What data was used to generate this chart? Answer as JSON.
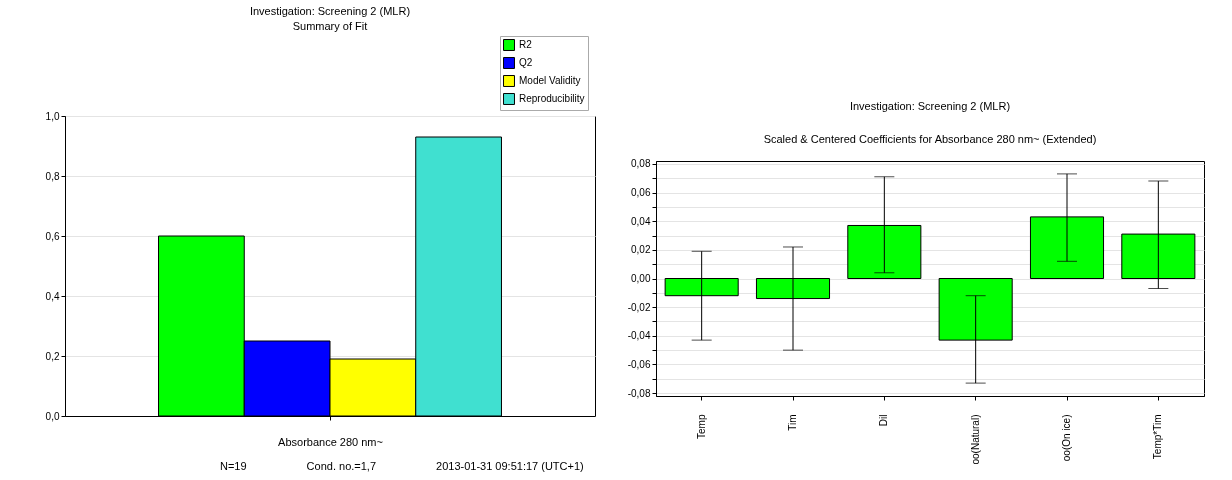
{
  "chart_data": [
    {
      "type": "bar",
      "title": "Investigation: Screening 2 (MLR)",
      "subtitle": "Summary of Fit",
      "xlabel": "Absorbance 280 nm~",
      "categories": [
        null
      ],
      "series": [
        {
          "name": "R2",
          "color": "#00ff00",
          "values": [
            0.6
          ]
        },
        {
          "name": "Q2",
          "color": "#0000ff",
          "values": [
            0.25
          ]
        },
        {
          "name": "Model Validity",
          "color": "#ffff00",
          "values": [
            0.19
          ]
        },
        {
          "name": "Reproducibility",
          "color": "#40e0d0",
          "values": [
            0.93
          ]
        }
      ],
      "ylim": [
        0,
        1
      ],
      "yticks": [
        {
          "value": 0,
          "label": "0,0"
        },
        {
          "value": 0.2,
          "label": "0,2"
        },
        {
          "value": 0.4,
          "label": "0,4"
        },
        {
          "value": 0.6,
          "label": "0,6"
        },
        {
          "value": 0.8,
          "label": "0,8"
        },
        {
          "value": 1,
          "label": "1,0"
        }
      ],
      "grid": "y",
      "legend": "top right",
      "annotations": [
        "N=19",
        "Cond. no.=1,7",
        "2013-01-31 09:51:17 (UTC+1)"
      ]
    },
    {
      "type": "bar",
      "title": "Investigation: Screening 2 (MLR)",
      "subtitle": "Scaled & Centered Coefficients for Absorbance 280 nm~ (Extended)",
      "categories": [
        "Temp",
        "Tim",
        "Dil",
        "oo(Natural)",
        "oo(On ice)",
        "Temp*Tim"
      ],
      "values": [
        -0.012,
        -0.014,
        0.037,
        -0.043,
        0.043,
        0.031
      ],
      "color": "#00ff00",
      "errors": [
        [
          -0.043,
          0.019
        ],
        [
          -0.05,
          0.022
        ],
        [
          0.004,
          0.071
        ],
        [
          -0.073,
          -0.012
        ],
        [
          0.012,
          0.073
        ],
        [
          -0.007,
          0.068
        ]
      ],
      "ylim": [
        -0.082,
        0.082
      ],
      "yticks": [
        {
          "value": -0.08,
          "label": "-0,08"
        },
        {
          "value": -0.07,
          "label": null
        },
        {
          "value": -0.06,
          "label": "-0,06"
        },
        {
          "value": -0.05,
          "label": null
        },
        {
          "value": -0.04,
          "label": "-0,04"
        },
        {
          "value": -0.03,
          "label": null
        },
        {
          "value": -0.02,
          "label": "-0,02"
        },
        {
          "value": -0.01,
          "label": null
        },
        {
          "value": 0,
          "label": "0,00"
        },
        {
          "value": 0.01,
          "label": null
        },
        {
          "value": 0.02,
          "label": "0,02"
        },
        {
          "value": 0.03,
          "label": null
        },
        {
          "value": 0.04,
          "label": "0,04"
        },
        {
          "value": 0.05,
          "label": null
        },
        {
          "value": 0.06,
          "label": "0,06"
        },
        {
          "value": 0.07,
          "label": null
        },
        {
          "value": 0.08,
          "label": "0,08"
        }
      ],
      "grid": "y"
    }
  ]
}
